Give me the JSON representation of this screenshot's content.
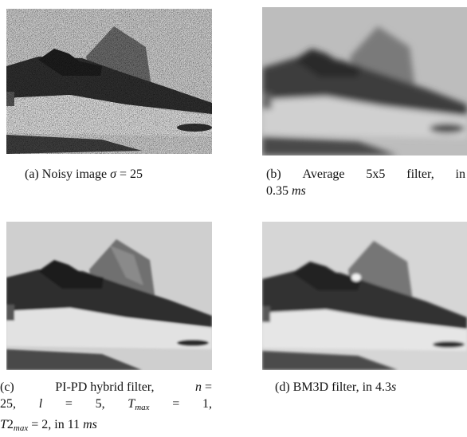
{
  "figure": {
    "panels": [
      {
        "id": "a",
        "kind": "noisy",
        "caption": {
          "label": "(a)",
          "text": "Noisy image",
          "sigma_symbol": "σ",
          "sigma_value": "= 25"
        }
      },
      {
        "id": "b",
        "kind": "average",
        "caption": {
          "label": "(b)",
          "word1": "Average",
          "word2": "5x5",
          "word3": "filter,",
          "word4": "in",
          "time_value": "0.35",
          "time_unit": "ms"
        }
      },
      {
        "id": "c",
        "kind": "pipd",
        "caption": {
          "label": "(c)",
          "method": "PI-PD hybrid filter,",
          "n_symbol": "n",
          "eq": "=",
          "n_value": "25,",
          "l_symbol": "l",
          "l_value": "5,",
          "tmax_symbol": "T",
          "tmax_sub": "max",
          "tmax_value": "1,",
          "t2_symbol": "T",
          "t2_num": "2",
          "t2_sub": "max",
          "t2_value": "= 2, in 11",
          "time_unit": "ms"
        }
      },
      {
        "id": "d",
        "kind": "bm3d",
        "caption": {
          "label": "(d)",
          "text": "BM3D filter, in",
          "time_value": "4.3",
          "time_unit": "s"
        }
      }
    ]
  }
}
